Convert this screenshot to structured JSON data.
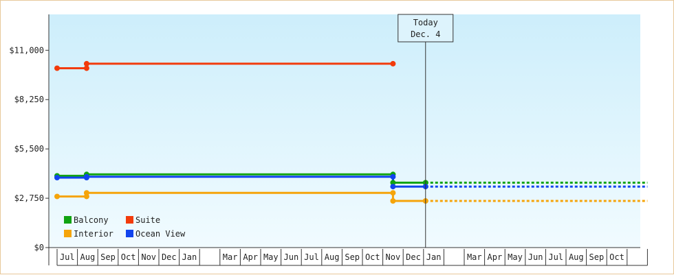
{
  "chart_data": {
    "type": "line",
    "title": "",
    "xlabel": "",
    "ylabel": "",
    "ylim": [
      0,
      13000
    ],
    "y_ticks": [
      {
        "value": 0,
        "label": "$0"
      },
      {
        "value": 2750,
        "label": "$2,750"
      },
      {
        "value": 5500,
        "label": "$5,500"
      },
      {
        "value": 8250,
        "label": "$8,250"
      },
      {
        "value": 11000,
        "label": "$11,000"
      }
    ],
    "months": [
      "Jul",
      "Aug",
      "Sep",
      "Oct",
      "Nov",
      "Dec",
      "Jan",
      "",
      "Mar",
      "Apr",
      "May",
      "Jun",
      "Jul",
      "Aug",
      "Sep",
      "Oct",
      "Nov",
      "Dec",
      "Jan",
      "",
      "Mar",
      "Apr",
      "May",
      "Jun",
      "Jul",
      "Aug",
      "Sep",
      "Oct",
      ""
    ],
    "x_start": 0,
    "x_end": 29,
    "today": {
      "x": 18.1,
      "label_line1": "Today",
      "label_line2": "Dec. 4"
    },
    "grid": false,
    "legend_position": "bottom-left",
    "series": [
      {
        "name": "Balcony",
        "color": "#11a311",
        "points": [
          [
            0,
            4000
          ],
          [
            1.45,
            4000
          ],
          [
            1.45,
            4080
          ],
          [
            16.5,
            4080
          ],
          [
            16.5,
            3620
          ],
          [
            18.1,
            3620
          ]
        ],
        "marker_points": [
          [
            0,
            4000
          ],
          [
            1.45,
            4000
          ],
          [
            1.45,
            4080
          ],
          [
            16.5,
            4080
          ],
          [
            16.5,
            3620
          ],
          [
            18.1,
            3620
          ]
        ],
        "projection": [
          [
            18.1,
            3620
          ],
          [
            29,
            3620
          ]
        ]
      },
      {
        "name": "Suite",
        "color": "#f23b0b",
        "points": [
          [
            0,
            10000
          ],
          [
            1.45,
            10000
          ],
          [
            1.45,
            10250
          ],
          [
            16.5,
            10250
          ]
        ],
        "marker_points": [
          [
            0,
            10000
          ],
          [
            1.45,
            10000
          ],
          [
            1.45,
            10250
          ],
          [
            16.5,
            10250
          ]
        ],
        "projection": []
      },
      {
        "name": "Interior",
        "color": "#f5a40a",
        "points": [
          [
            0,
            2850
          ],
          [
            1.45,
            2850
          ],
          [
            1.45,
            3050
          ],
          [
            16.5,
            3050
          ],
          [
            16.5,
            2600
          ],
          [
            18.1,
            2600
          ]
        ],
        "marker_points": [
          [
            0,
            2850
          ],
          [
            1.45,
            2850
          ],
          [
            1.45,
            3050
          ],
          [
            16.5,
            3050
          ],
          [
            16.5,
            2600
          ],
          [
            18.1,
            2600
          ]
        ],
        "projection": [
          [
            18.1,
            2600
          ],
          [
            29,
            2600
          ]
        ]
      },
      {
        "name": "Ocean View",
        "color": "#1144ee",
        "points": [
          [
            0,
            3900
          ],
          [
            1.45,
            3900
          ],
          [
            1.45,
            3950
          ],
          [
            16.5,
            3950
          ],
          [
            16.5,
            3400
          ],
          [
            18.1,
            3400
          ]
        ],
        "marker_points": [
          [
            0,
            3900
          ],
          [
            1.45,
            3900
          ],
          [
            1.45,
            3950
          ],
          [
            16.5,
            3950
          ],
          [
            16.5,
            3400
          ],
          [
            18.1,
            3400
          ]
        ],
        "projection": [
          [
            18.1,
            3400
          ],
          [
            29,
            3400
          ]
        ]
      }
    ]
  }
}
